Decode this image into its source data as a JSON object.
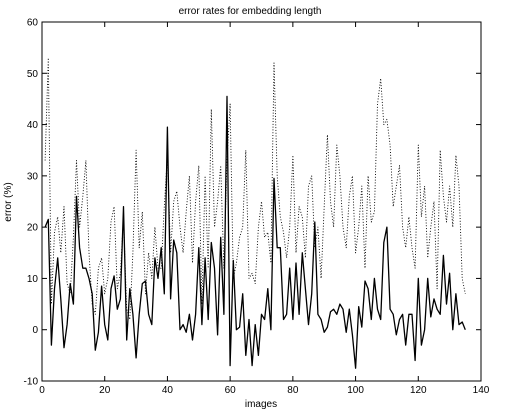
{
  "chart_data": {
    "type": "line",
    "title": "error rates for embedding length",
    "xlabel": "images",
    "ylabel": "error (%)",
    "xlim": [
      0,
      140
    ],
    "ylim": [
      -10,
      60
    ],
    "xticks": [
      0,
      20,
      40,
      60,
      80,
      100,
      120,
      140
    ],
    "yticks": [
      -10,
      0,
      10,
      20,
      30,
      40,
      50,
      60
    ],
    "grid": false,
    "legend": "none",
    "series": [
      {
        "style": "solid",
        "color": "#000000",
        "x": [
          1,
          2,
          3,
          4,
          5,
          6,
          7,
          8,
          9,
          10,
          11,
          12,
          13,
          14,
          15,
          16,
          17,
          18,
          19,
          20,
          21,
          22,
          23,
          24,
          25,
          26,
          27,
          28,
          29,
          30,
          31,
          32,
          33,
          34,
          35,
          36,
          37,
          38,
          39,
          40,
          41,
          42,
          43,
          44,
          45,
          46,
          47,
          48,
          49,
          50,
          51,
          52,
          53,
          54,
          55,
          56,
          57,
          58,
          59,
          60,
          61,
          62,
          63,
          64,
          65,
          66,
          67,
          68,
          69,
          70,
          71,
          72,
          73,
          74,
          75,
          76,
          77,
          78,
          79,
          80,
          81,
          82,
          83,
          84,
          85,
          86,
          87,
          88,
          89,
          90,
          91,
          92,
          93,
          94,
          95,
          96,
          97,
          98,
          99,
          100,
          101,
          102,
          103,
          104,
          105,
          106,
          107,
          108,
          109,
          110,
          111,
          112,
          113,
          114,
          115,
          116,
          117,
          118,
          119,
          120,
          121,
          122,
          123,
          124,
          125,
          126,
          127,
          128,
          129,
          130,
          131,
          132,
          133,
          134,
          135
        ],
        "y": [
          20,
          21.5,
          -3,
          8,
          14,
          6,
          -3.5,
          1,
          9,
          5,
          26,
          16,
          12,
          12,
          10,
          7,
          -4,
          -0.5,
          8.5,
          1,
          -2,
          8,
          10.5,
          4,
          6,
          24,
          -2,
          8,
          3,
          -5.5,
          3,
          9,
          9.5,
          3,
          1,
          14,
          10,
          16,
          7,
          39.5,
          6,
          17.5,
          15,
          0,
          1,
          -0.5,
          3,
          -2,
          3,
          16,
          1,
          14,
          2,
          17,
          12,
          -1,
          18,
          3,
          45.5,
          -7,
          13.5,
          0,
          0.5,
          7,
          -5,
          2,
          -7,
          1,
          -5,
          3,
          2,
          8,
          0,
          29.5,
          16,
          16,
          2,
          3,
          12,
          2,
          13,
          3,
          15,
          8,
          1,
          7,
          21,
          3,
          2,
          -0.5,
          0.5,
          3.5,
          4,
          3,
          5,
          4,
          -0.5,
          4,
          -1,
          -7.5,
          4.5,
          0.5,
          9.5,
          8,
          2,
          10,
          4,
          2,
          17,
          20,
          4,
          3,
          -1,
          2,
          3,
          -3,
          3,
          3,
          -6,
          10,
          -3,
          0,
          10,
          2.5,
          6,
          4,
          3,
          14.5,
          5,
          11,
          0,
          7,
          1,
          1.5,
          0
        ]
      },
      {
        "style": "dotted",
        "color": "#000000",
        "x": [
          1,
          2,
          3,
          4,
          5,
          6,
          7,
          8,
          9,
          10,
          11,
          12,
          13,
          14,
          15,
          16,
          17,
          18,
          19,
          20,
          21,
          22,
          23,
          24,
          25,
          26,
          27,
          28,
          29,
          30,
          31,
          32,
          33,
          34,
          35,
          36,
          37,
          38,
          39,
          40,
          41,
          42,
          43,
          44,
          45,
          46,
          47,
          48,
          49,
          50,
          51,
          52,
          53,
          54,
          55,
          56,
          57,
          58,
          59,
          60,
          61,
          62,
          63,
          64,
          65,
          66,
          67,
          68,
          69,
          70,
          71,
          72,
          73,
          74,
          75,
          76,
          77,
          78,
          79,
          80,
          81,
          82,
          83,
          84,
          85,
          86,
          87,
          88,
          89,
          90,
          91,
          92,
          93,
          94,
          95,
          96,
          97,
          98,
          99,
          100,
          101,
          102,
          103,
          104,
          105,
          106,
          107,
          108,
          109,
          110,
          111,
          112,
          113,
          114,
          115,
          116,
          117,
          118,
          119,
          120,
          121,
          122,
          123,
          124,
          125,
          126,
          127,
          128,
          129,
          130,
          131,
          132,
          133,
          134,
          135
        ],
        "y": [
          33,
          53,
          5,
          19,
          22,
          15,
          24,
          9,
          7,
          18,
          33,
          20,
          26,
          33,
          15,
          5,
          3,
          12,
          14,
          7,
          10,
          21,
          24,
          8,
          11,
          22,
          4,
          2,
          15,
          35,
          16,
          23,
          7,
          15,
          10,
          20,
          12,
          12,
          24,
          34,
          15,
          25,
          27,
          20,
          15,
          23,
          30,
          13,
          25,
          32,
          5,
          30,
          12,
          43,
          20,
          25,
          32,
          12,
          33,
          44,
          10,
          13,
          18,
          20,
          35,
          10,
          11,
          9,
          20,
          25,
          18,
          19,
          13,
          52,
          30,
          22,
          19,
          14,
          20,
          34,
          15,
          24,
          22,
          14,
          28,
          30,
          16,
          20,
          10,
          24,
          38,
          25,
          20,
          36,
          30,
          20,
          16,
          26,
          30,
          15,
          20,
          28,
          12,
          30,
          21,
          23,
          44,
          49,
          40,
          41,
          36,
          24,
          28,
          32,
          20,
          16,
          22,
          16,
          12,
          36,
          22,
          28,
          14,
          20,
          25,
          8,
          35,
          26,
          21,
          28,
          20,
          34,
          28,
          10,
          7
        ]
      }
    ]
  }
}
